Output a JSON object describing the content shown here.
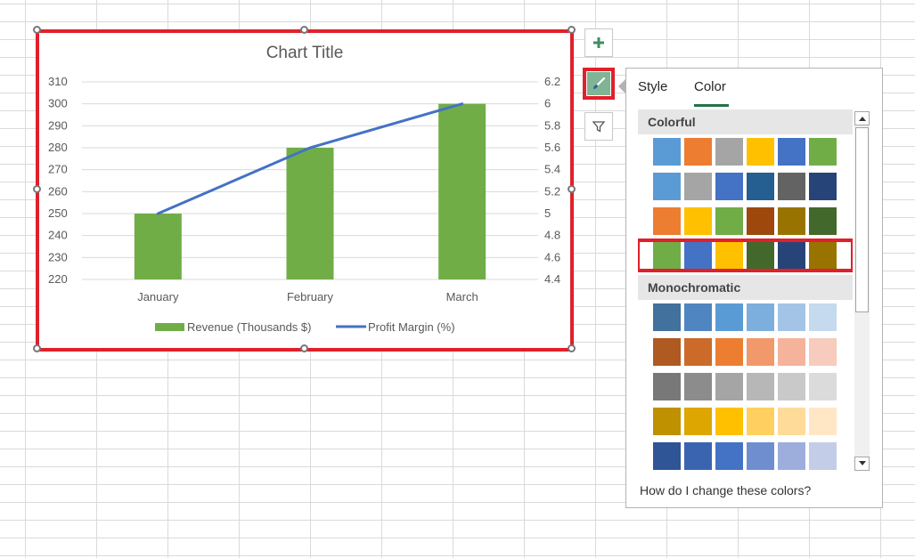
{
  "chart": {
    "title": "Chart Title",
    "chart_data": {
      "type": "bar",
      "categories": [
        "January",
        "February",
        "March"
      ],
      "series": [
        {
          "name": "Revenue (Thousands $)",
          "type": "bar",
          "axis": "left",
          "values": [
            250,
            280,
            300
          ]
        },
        {
          "name": "Profit Margin (%)",
          "type": "line",
          "axis": "right",
          "values": [
            5,
            5.6,
            6
          ]
        }
      ],
      "title": "Chart Title",
      "left_axis": {
        "min": 220,
        "max": 310,
        "ticks": [
          "310",
          "300",
          "290",
          "280",
          "270",
          "260",
          "250",
          "240",
          "230",
          "220"
        ]
      },
      "right_axis": {
        "min": 4.4,
        "max": 6.2,
        "ticks": [
          "6.2",
          "6",
          "5.8",
          "5.6",
          "5.4",
          "5.2",
          "5",
          "4.8",
          "4.6",
          "4.4"
        ]
      },
      "grid": true,
      "legend_position": "bottom",
      "colors": {
        "bar": "#70ad47",
        "line": "#4472c4"
      }
    }
  },
  "side_buttons": {
    "add_icon": "plus-icon",
    "style_icon": "paintbrush-icon",
    "filter_icon": "funnel-icon"
  },
  "panel": {
    "tabs": [
      {
        "label": "Style"
      },
      {
        "label": "Color",
        "active": true
      }
    ],
    "sections": {
      "colorful": {
        "title": "Colorful",
        "rows": [
          [
            "#5b9bd5",
            "#ed7d31",
            "#a5a5a5",
            "#ffc000",
            "#4472c4",
            "#70ad47"
          ],
          [
            "#5b9bd5",
            "#a5a5a5",
            "#4472c4",
            "#255e91",
            "#636363",
            "#264478"
          ],
          [
            "#ed7d31",
            "#ffc000",
            "#70ad47",
            "#9e480e",
            "#997300",
            "#43682b"
          ],
          [
            "#70ad47",
            "#4472c4",
            "#ffc000",
            "#43682b",
            "#264478",
            "#997300"
          ]
        ]
      },
      "monochromatic": {
        "title": "Monochromatic",
        "rows": [
          [
            "#41719c",
            "#4f86c1",
            "#5b9bd5",
            "#7cafdd",
            "#a3c4e6",
            "#c5d9ef"
          ],
          [
            "#ae5a21",
            "#cc6a29",
            "#ed7d31",
            "#f1996a",
            "#f4b39a",
            "#f7cbbd"
          ],
          [
            "#787878",
            "#8c8c8c",
            "#a5a5a5",
            "#b7b7b7",
            "#c9c9c9",
            "#dbdbdb"
          ],
          [
            "#bf9000",
            "#dda600",
            "#ffc000",
            "#ffd05f",
            "#ffdb9a",
            "#ffe7c5"
          ],
          [
            "#2f5597",
            "#3a64b0",
            "#4472c4",
            "#6f8ed0",
            "#9daedc",
            "#c4cde8"
          ]
        ]
      }
    },
    "help_text": "How do I change these colors?"
  }
}
